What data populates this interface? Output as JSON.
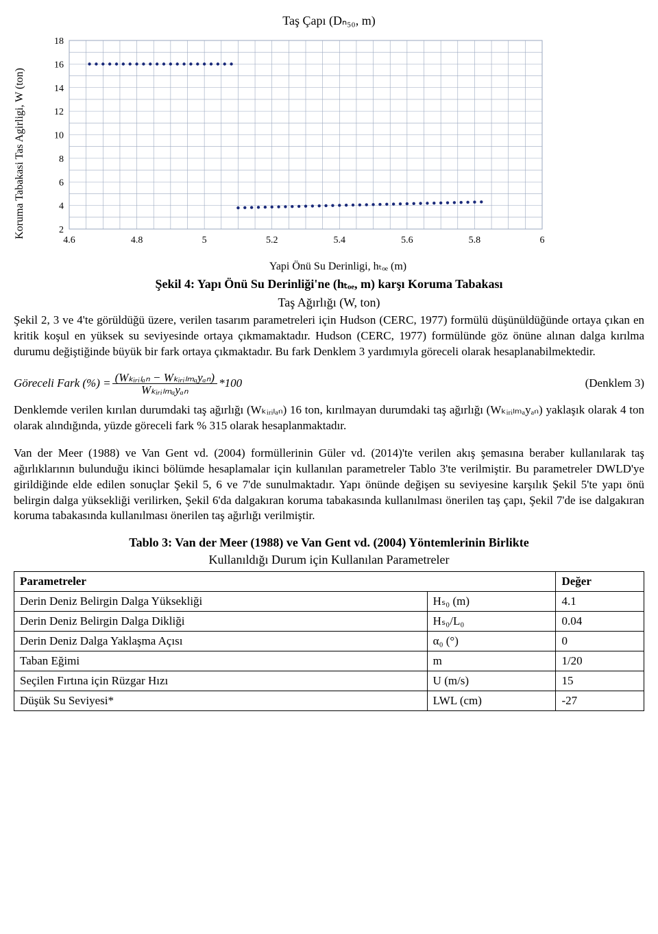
{
  "chart": {
    "title": "Taş Çapı (Dₙ₅₀, m)",
    "ylabel": "Koruma Tabakasi Tas Agirligi, W (ton)",
    "xlabel": "Yapi Önü Su Derinligi, hₜₒₑ (m)",
    "type": "scatter",
    "background_color": "#ffffff",
    "grid_color": "#9aa7bf",
    "xlim": [
      4.6,
      6.0
    ],
    "ylim": [
      2,
      18
    ],
    "xticks": [
      4.6,
      4.8,
      5.0,
      5.2,
      5.4,
      5.6,
      5.8,
      6.0
    ],
    "yticks": [
      2,
      4,
      6,
      8,
      10,
      12,
      14,
      16,
      18
    ],
    "marker_color": "#1a2a7a",
    "marker_size": 2.2,
    "series": [
      {
        "y": 16,
        "x": [
          4.66,
          4.68,
          4.7,
          4.72,
          4.74,
          4.76,
          4.78,
          4.8,
          4.82,
          4.84,
          4.86,
          4.88,
          4.9,
          4.92,
          4.94,
          4.96,
          4.98,
          5.0,
          5.02,
          5.04,
          5.06,
          5.08
        ]
      },
      {
        "y_start": 3.8,
        "y_end": 4.3,
        "x": [
          5.1,
          5.12,
          5.14,
          5.16,
          5.18,
          5.2,
          5.22,
          5.24,
          5.26,
          5.28,
          5.3,
          5.32,
          5.34,
          5.36,
          5.38,
          5.4,
          5.42,
          5.44,
          5.46,
          5.48,
          5.5,
          5.52,
          5.54,
          5.56,
          5.58,
          5.6,
          5.62,
          5.64,
          5.66,
          5.68,
          5.7,
          5.72,
          5.74,
          5.76,
          5.78,
          5.8,
          5.82
        ]
      }
    ]
  },
  "fig_caption_1": "Şekil 4: Yapı Önü Su Derinliği'ne (hₜₒₑ, m) karşı Koruma Tabakası",
  "fig_caption_2": "Taş Ağırlığı (W, ton)",
  "para1": "Şekil 2, 3 ve 4'te görüldüğü üzere, verilen tasarım parametreleri için Hudson (CERC, 1977) formülü düşünüldüğünde ortaya çıkan en kritik koşul en yüksek su seviyesinde ortaya çıkmamaktadır. Hudson (CERC, 1977) formülünde göz önüne alınan dalga kırılma durumu değiştiğinde büyük bir fark ortaya çıkmaktadır. Bu fark Denklem 3 yardımıyla göreceli olarak hesaplanabilmektedir.",
  "formula_left": "Göreceli Fark (%) =",
  "formula_num": "(Wₖᵢᵣᵢₗₐₙ − Wₖᵢᵣᵢₗₘₐyₐₙ)",
  "formula_den": "Wₖᵢᵣᵢₗₘₐyₐₙ",
  "formula_mul": "*100",
  "formula_right": "(Denklem 3)",
  "para2": "Denklemde verilen kırılan durumdaki taş ağırlığı (Wₖᵢᵣᵢₗₐₙ) 16 ton, kırılmayan durumdaki taş ağırlığı (Wₖᵢᵣᵢₗₘₐyₐₙ) yaklaşık olarak 4 ton olarak alındığında, yüzde göreceli fark % 315 olarak hesaplanmaktadır.",
  "para3": "Van der Meer (1988) ve Van Gent vd. (2004) formüllerinin Güler vd. (2014)'te verilen akış şemasına beraber kullanılarak taş ağırlıklarının bulunduğu ikinci bölümde hesaplamalar için kullanılan parametreler Tablo 3'te verilmiştir. Bu parametreler DWLD'ye girildiğinde elde edilen sonuçlar Şekil 5, 6 ve 7'de sunulmaktadır. Yapı önünde değişen su seviyesine karşılık Şekil 5'te yapı önü belirgin dalga yüksekliği verilirken, Şekil 6'da dalgakıran koruma tabakasında kullanılması önerilen taş çapı, Şekil 7'de ise dalgakıran koruma tabakasında kullanılması önerilen taş ağırlığı verilmiştir.",
  "tablo_title": "Tablo 3: Van der Meer (1988) ve Van Gent vd. (2004) Yöntemlerinin Birlikte",
  "tablo_sub": "Kullanıldığı Durum için Kullanılan Parametreler",
  "table": {
    "head": [
      "Parametreler",
      "",
      "Değer"
    ],
    "rows": [
      [
        "Derin Deniz Belirgin Dalga Yüksekliği",
        "Hₛ₀ (m)",
        "4.1"
      ],
      [
        "Derin Deniz Belirgin Dalga Dikliği",
        "Hₛ₀/L₀",
        "0.04"
      ],
      [
        "Derin Deniz Dalga Yaklaşma Açısı",
        "α₀ (°)",
        "0"
      ],
      [
        "Taban Eğimi",
        "m",
        "1/20"
      ],
      [
        "Seçilen Fırtına için Rüzgar Hızı",
        "U (m/s)",
        "15"
      ],
      [
        "Düşük Su Seviyesi*",
        "LWL (cm)",
        "-27"
      ]
    ]
  }
}
